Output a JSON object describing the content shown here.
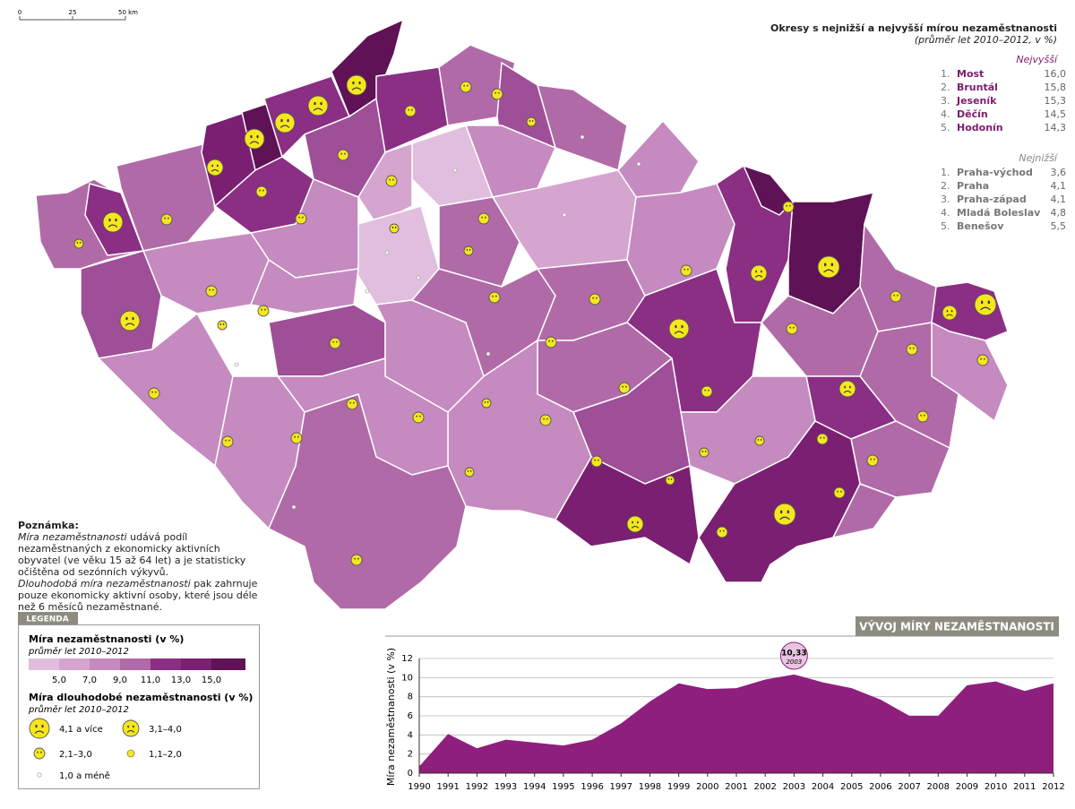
{
  "scale": {
    "labels": [
      "0",
      "25",
      "50 km"
    ]
  },
  "ranking": {
    "title": "Okresy s nejnižší a nejvyšší mírou nezaměstnanosti",
    "subtitle": "(průměr let 2010–2012, v %)",
    "highest": {
      "heading": "Nejvyšší",
      "items": [
        {
          "rank": "1.",
          "name": "Most",
          "value": "16,0"
        },
        {
          "rank": "2.",
          "name": "Bruntál",
          "value": "15,8"
        },
        {
          "rank": "3.",
          "name": "Jeseník",
          "value": "15,3"
        },
        {
          "rank": "4.",
          "name": "Děčín",
          "value": "14,5"
        },
        {
          "rank": "5.",
          "name": "Hodonín",
          "value": "14,3"
        }
      ]
    },
    "lowest": {
      "heading": "Nejnižší",
      "items": [
        {
          "rank": "1.",
          "name": "Praha-východ",
          "value": "3,6"
        },
        {
          "rank": "2.",
          "name": "Praha",
          "value": "4,1"
        },
        {
          "rank": "3.",
          "name": "Praha-západ",
          "value": "4,1"
        },
        {
          "rank": "4.",
          "name": "Mladá Boleslav",
          "value": "4,8"
        },
        {
          "rank": "5.",
          "name": "Benešov",
          "value": "5,5"
        }
      ]
    }
  },
  "note": {
    "heading": "Poznámka:",
    "p1": [
      "Míra nezaměstnanosti",
      "udává podíl nezaměstnaných z ekonomicky aktivních obyvatel (ve věku 15 až 64 let) a je statisticky očištěna od sezónních výkyvů."
    ],
    "p2": [
      "Dlouhodobá míra nezaměstnanosti",
      "pak zahrnuje pouze ekonomicky aktivní osoby, které jsou déle než 6 měsíců nezaměstnané."
    ]
  },
  "legend": {
    "tab": "LEGENDA",
    "rate_title": "Míra nezaměstnanosti (v %)",
    "rate_subtitle": "průměr let 2010–2012",
    "rate_breaks": [
      "5,0",
      "7,0",
      "9,0",
      "11,0",
      "13,0",
      "15,0"
    ],
    "long_title": "Míra dlouhodobé nezaměstnanosti (v %)",
    "long_subtitle": "průměr let 2010–2012",
    "long_classes": [
      "4,1 a více",
      "3,1–4,0",
      "2,1–3,0",
      "1,1–2,0",
      "1,0 a méně"
    ]
  },
  "chart_data": {
    "type": "area",
    "title": "VÝVOJ MÍRY NEZAMĚSTNANOSTI",
    "y_label": "Míra nezaměstnanosti (v %)",
    "x": [
      1990,
      1991,
      1992,
      1993,
      1994,
      1995,
      1996,
      1997,
      1998,
      1999,
      2000,
      2001,
      2002,
      2003,
      2004,
      2005,
      2006,
      2007,
      2008,
      2009,
      2010,
      2011,
      2012
    ],
    "values": [
      0.7,
      4.1,
      2.6,
      3.5,
      3.2,
      2.9,
      3.5,
      5.2,
      7.5,
      9.4,
      8.8,
      8.9,
      9.8,
      10.33,
      9.5,
      8.9,
      7.7,
      6.0,
      6.0,
      9.2,
      9.6,
      8.6,
      9.4
    ],
    "color": "#8e1f7d",
    "xlim": [
      1990,
      2012
    ],
    "ylim": [
      0,
      12
    ],
    "yticks": [
      0,
      2,
      4,
      6,
      8,
      10,
      12
    ],
    "grid": true,
    "annotation": {
      "x": 2003,
      "value": 10.33,
      "label": "10,33",
      "sublabel": "2003"
    }
  }
}
